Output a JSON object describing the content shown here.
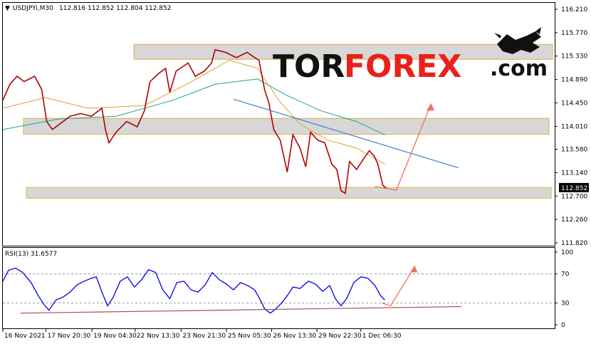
{
  "header": {
    "symbol": "USDJPYi,M30",
    "ohlc": "112.816 112.852 112.804 112.852"
  },
  "rsi_header": "RSI(13) 31.6577",
  "logo": {
    "part1": "TOR",
    "part2": "FOREX",
    "part3": ".com"
  },
  "price_badge": "112.852",
  "colors": {
    "candles": "#b00000",
    "ma_fast": "#e0a030",
    "ma_slow": "#1aa88a",
    "trendline": "#3d7fd6",
    "arrow": "#f07060",
    "rsi_line": "#0000ee",
    "rsi_support": "#a05050",
    "zone_fill": "#d7d7d7",
    "zone_border": "#e0b040",
    "badge_bg": "#000000"
  },
  "chart_data": [
    {
      "type": "line",
      "name": "price",
      "ylim": [
        111.82,
        116.21
      ],
      "y_ticks": [
        "116.210",
        "115.770",
        "115.330",
        "114.890",
        "114.450",
        "114.010",
        "113.580",
        "113.140",
        "112.700",
        "112.260",
        "111.820"
      ],
      "x_ticks": [
        "16 Nov 2021",
        "17 Nov 20:30",
        "19 Nov 04:30",
        "22 Nov 13:30",
        "23 Nov 21:30",
        "25 Nov 05:30",
        "26 Nov 13:30",
        "29 Nov 22:30",
        "1 Dec 06:30"
      ],
      "x_tick_pos": [
        0,
        61,
        126,
        187,
        252,
        316,
        380,
        444,
        506
      ],
      "x_range": [
        0,
        780
      ],
      "price": [
        [
          0,
          114.5
        ],
        [
          10,
          114.8
        ],
        [
          20,
          114.95
        ],
        [
          30,
          114.85
        ],
        [
          45,
          114.95
        ],
        [
          55,
          114.7
        ],
        [
          62,
          114.1
        ],
        [
          70,
          113.95
        ],
        [
          80,
          114.05
        ],
        [
          95,
          114.2
        ],
        [
          110,
          114.25
        ],
        [
          125,
          114.2
        ],
        [
          140,
          114.35
        ],
        [
          145,
          113.95
        ],
        [
          150,
          113.7
        ],
        [
          160,
          113.9
        ],
        [
          175,
          114.1
        ],
        [
          190,
          114.0
        ],
        [
          200,
          114.3
        ],
        [
          208,
          114.85
        ],
        [
          220,
          115.0
        ],
        [
          230,
          115.1
        ],
        [
          236,
          114.65
        ],
        [
          245,
          115.05
        ],
        [
          262,
          115.2
        ],
        [
          272,
          114.95
        ],
        [
          285,
          115.05
        ],
        [
          295,
          115.2
        ],
        [
          300,
          115.45
        ],
        [
          315,
          115.4
        ],
        [
          330,
          115.3
        ],
        [
          345,
          115.4
        ],
        [
          362,
          115.25
        ],
        [
          370,
          114.7
        ],
        [
          376,
          114.45
        ],
        [
          383,
          113.95
        ],
        [
          392,
          113.75
        ],
        [
          402,
          113.15
        ],
        [
          410,
          113.85
        ],
        [
          420,
          113.6
        ],
        [
          428,
          113.25
        ],
        [
          435,
          113.9
        ],
        [
          445,
          113.75
        ],
        [
          455,
          113.7
        ],
        [
          465,
          113.3
        ],
        [
          472,
          113.2
        ],
        [
          478,
          112.8
        ],
        [
          484,
          112.75
        ],
        [
          490,
          113.35
        ],
        [
          500,
          113.2
        ],
        [
          510,
          113.4
        ],
        [
          518,
          113.55
        ],
        [
          525,
          113.45
        ],
        [
          530,
          113.3
        ],
        [
          537,
          112.9
        ],
        [
          542,
          112.85
        ]
      ],
      "ma_fast": [
        [
          0,
          114.35
        ],
        [
          60,
          114.55
        ],
        [
          120,
          114.35
        ],
        [
          200,
          114.4
        ],
        [
          260,
          114.8
        ],
        [
          320,
          115.25
        ],
        [
          360,
          115.1
        ],
        [
          390,
          114.5
        ],
        [
          420,
          114.05
        ],
        [
          460,
          113.75
        ],
        [
          500,
          113.6
        ],
        [
          540,
          113.3
        ]
      ],
      "ma_slow": [
        [
          0,
          113.95
        ],
        [
          80,
          114.15
        ],
        [
          160,
          114.2
        ],
        [
          240,
          114.5
        ],
        [
          300,
          114.8
        ],
        [
          360,
          114.9
        ],
        [
          400,
          114.6
        ],
        [
          450,
          114.3
        ],
        [
          500,
          114.1
        ],
        [
          540,
          113.85
        ]
      ],
      "zones": [
        [
          115.27,
          115.55
        ],
        [
          113.86,
          114.16
        ],
        [
          112.66,
          112.86
        ]
      ],
      "trendline": [
        [
          326,
          114.52
        ],
        [
          644,
          113.23
        ]
      ],
      "arrow": [
        [
          542,
          112.85
        ],
        [
          605,
          114.42
        ]
      ],
      "current_price": 112.852
    },
    {
      "type": "line",
      "name": "RSI",
      "ylim": [
        0,
        100
      ],
      "y_ticks": [
        "100",
        "70",
        "30",
        "0"
      ],
      "levels": [
        70,
        30
      ],
      "rsi": [
        [
          0,
          60
        ],
        [
          8,
          75
        ],
        [
          18,
          78
        ],
        [
          28,
          72
        ],
        [
          40,
          58
        ],
        [
          50,
          40
        ],
        [
          58,
          28
        ],
        [
          65,
          20
        ],
        [
          75,
          34
        ],
        [
          85,
          38
        ],
        [
          95,
          45
        ],
        [
          105,
          55
        ],
        [
          115,
          60
        ],
        [
          125,
          64
        ],
        [
          132,
          66
        ],
        [
          140,
          45
        ],
        [
          148,
          26
        ],
        [
          156,
          38
        ],
        [
          166,
          60
        ],
        [
          176,
          66
        ],
        [
          186,
          52
        ],
        [
          196,
          62
        ],
        [
          206,
          76
        ],
        [
          216,
          72
        ],
        [
          226,
          48
        ],
        [
          236,
          36
        ],
        [
          246,
          58
        ],
        [
          256,
          60
        ],
        [
          266,
          48
        ],
        [
          276,
          45
        ],
        [
          286,
          55
        ],
        [
          296,
          72
        ],
        [
          306,
          62
        ],
        [
          316,
          56
        ],
        [
          326,
          48
        ],
        [
          336,
          58
        ],
        [
          346,
          54
        ],
        [
          356,
          48
        ],
        [
          364,
          34
        ],
        [
          370,
          22
        ],
        [
          378,
          16
        ],
        [
          386,
          22
        ],
        [
          394,
          30
        ],
        [
          402,
          40
        ],
        [
          410,
          52
        ],
        [
          420,
          50
        ],
        [
          432,
          60
        ],
        [
          442,
          56
        ],
        [
          452,
          46
        ],
        [
          462,
          54
        ],
        [
          470,
          36
        ],
        [
          478,
          26
        ],
        [
          486,
          36
        ],
        [
          496,
          58
        ],
        [
          506,
          66
        ],
        [
          516,
          64
        ],
        [
          526,
          54
        ],
        [
          534,
          40
        ],
        [
          540,
          34
        ]
      ],
      "support": [
        [
          25,
          16
        ],
        [
          648,
          25
        ]
      ],
      "arrow": [
        [
          548,
          26
        ],
        [
          582,
          80
        ]
      ]
    }
  ]
}
